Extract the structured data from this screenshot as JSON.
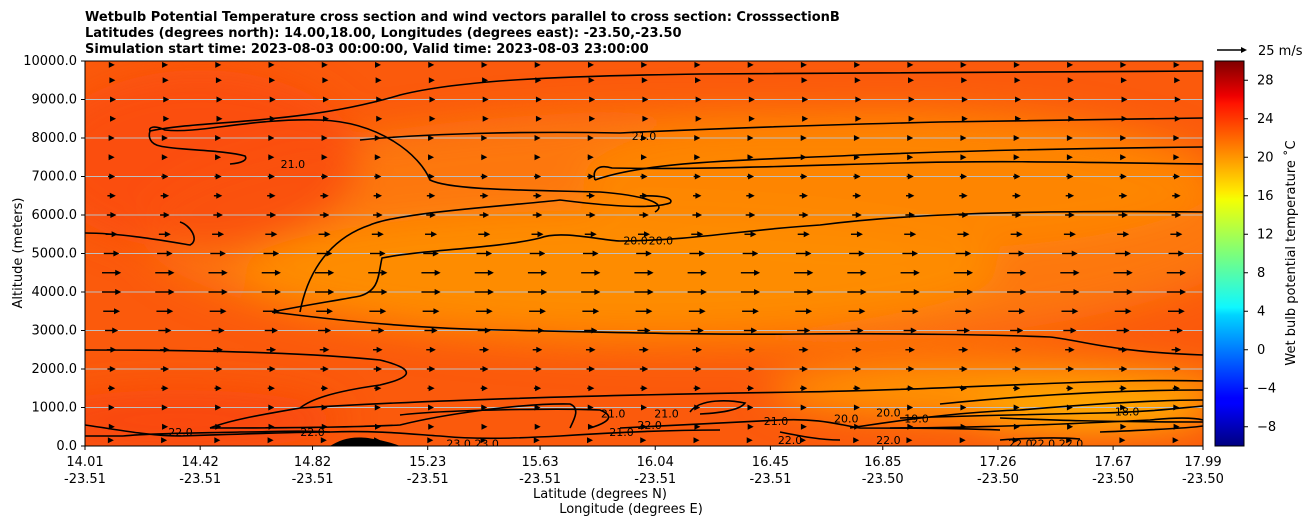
{
  "chart_data": {
    "type": "heatmap",
    "title_lines": [
      "Wetbulb Potential Temperature cross section and wind vectors parallel to cross section: CrosssectionB",
      "Latitudes (degrees north): 14.00,18.00, Longitudes (degrees east): -23.50,-23.50",
      "Simulation start time: 2023-08-03 00:00:00, Valid time: 2023-08-03 23:00:00"
    ],
    "ylabel": "Altitude (meters)",
    "xlabel_lat": "Latitude (degrees N)",
    "xlabel_lon": "Longitude (degrees E)",
    "ylim": [
      0,
      10000
    ],
    "yticks": [
      "0.0",
      "1000.0",
      "2000.0",
      "3000.0",
      "4000.0",
      "5000.0",
      "6000.0",
      "7000.0",
      "8000.0",
      "9000.0",
      "10000.0"
    ],
    "ytick_values": [
      0,
      1000,
      2000,
      3000,
      4000,
      5000,
      6000,
      7000,
      8000,
      9000,
      10000
    ],
    "xticks_lat": [
      "14.01",
      "14.42",
      "14.82",
      "15.23",
      "15.63",
      "16.04",
      "16.45",
      "16.85",
      "17.26",
      "17.67",
      "17.99"
    ],
    "xticks_lon": [
      "-23.51",
      "-23.51",
      "-23.51",
      "-23.51",
      "-23.51",
      "-23.51",
      "-23.51",
      "-23.50",
      "-23.50",
      "-23.50",
      "-23.50"
    ],
    "xtick_values": [
      14.01,
      14.42,
      14.82,
      15.23,
      15.63,
      16.04,
      16.45,
      16.85,
      17.26,
      17.67,
      17.99
    ],
    "xlim": [
      14.01,
      17.99
    ],
    "grid": "horizontal",
    "colorbar": {
      "label": "Wet bulb potential temperature ˚C",
      "range": [
        -10,
        30
      ],
      "ticks": [
        "−8",
        "−4",
        "0",
        "4",
        "8",
        "12",
        "16",
        "20",
        "24",
        "28"
      ],
      "tick_values": [
        -8,
        -4,
        0,
        4,
        8,
        12,
        16,
        20,
        24,
        28
      ],
      "colormap": "jet"
    },
    "quiver_key": {
      "label": "25 m/s",
      "speed": 25
    },
    "contour_labels": [
      {
        "text": "21.0",
        "lat": 16.0,
        "alt": 8050
      },
      {
        "text": "21.0",
        "lat": 14.75,
        "alt": 7330
      },
      {
        "text": "20.0",
        "lat": 15.97,
        "alt": 5340
      },
      {
        "text": "20.0",
        "lat": 16.06,
        "alt": 5340
      },
      {
        "text": "22.0",
        "lat": 14.35,
        "alt": 370
      },
      {
        "text": "22.0",
        "lat": 14.82,
        "alt": 370
      },
      {
        "text": "21.0",
        "lat": 15.89,
        "alt": 850
      },
      {
        "text": "21.0",
        "lat": 15.92,
        "alt": 370
      },
      {
        "text": "21.0",
        "lat": 16.08,
        "alt": 850
      },
      {
        "text": "22.0",
        "lat": 16.02,
        "alt": 550
      },
      {
        "text": "23.0",
        "lat": 15.34,
        "alt": 70
      },
      {
        "text": "23.0",
        "lat": 15.44,
        "alt": 70
      },
      {
        "text": "21.0",
        "lat": 16.47,
        "alt": 650
      },
      {
        "text": "22.0",
        "lat": 16.52,
        "alt": 150
      },
      {
        "text": "20.0",
        "lat": 16.72,
        "alt": 710
      },
      {
        "text": "20.0",
        "lat": 16.87,
        "alt": 870
      },
      {
        "text": "22.0",
        "lat": 16.87,
        "alt": 150
      },
      {
        "text": "19.0",
        "lat": 16.97,
        "alt": 720
      },
      {
        "text": "22.0",
        "lat": 17.34,
        "alt": 70
      },
      {
        "text": "22.0",
        "lat": 17.42,
        "alt": 70
      },
      {
        "text": "22.0",
        "lat": 17.52,
        "alt": 70
      },
      {
        "text": "18.0",
        "lat": 17.72,
        "alt": 900
      }
    ],
    "wind_profile": [
      {
        "alt": 150,
        "u": 0
      },
      {
        "alt": 500,
        "u": 2
      },
      {
        "alt": 1000,
        "u": 5
      },
      {
        "alt": 1500,
        "u": 6
      },
      {
        "alt": 2000,
        "u": 7
      },
      {
        "alt": 2500,
        "u": 8
      },
      {
        "alt": 3000,
        "u": 11
      },
      {
        "alt": 3500,
        "u": 14
      },
      {
        "alt": 4000,
        "u": 16
      },
      {
        "alt": 4500,
        "u": 16
      },
      {
        "alt": 5000,
        "u": 13
      },
      {
        "alt": 5500,
        "u": 10
      },
      {
        "alt": 6000,
        "u": 8
      },
      {
        "alt": 6500,
        "u": 7
      },
      {
        "alt": 7000,
        "u": 6
      },
      {
        "alt": 7500,
        "u": 5
      },
      {
        "alt": 8000,
        "u": 5
      },
      {
        "alt": 8500,
        "u": 4
      },
      {
        "alt": 9000,
        "u": 4
      },
      {
        "alt": 9500,
        "u": 3
      },
      {
        "alt": 9900,
        "u": 2
      }
    ],
    "temperature_field": [
      {
        "lat": 14.01,
        "alt": 0,
        "t": 25
      },
      {
        "lat": 14.5,
        "alt": 500,
        "t": 24.5
      },
      {
        "lat": 15.2,
        "alt": 3000,
        "t": 22.5
      },
      {
        "lat": 16.2,
        "alt": 4500,
        "t": 21
      },
      {
        "lat": 17.2,
        "alt": 1000,
        "t": 21
      },
      {
        "lat": 17.6,
        "alt": 800,
        "t": 19
      },
      {
        "lat": 14.2,
        "alt": 9000,
        "t": 24
      },
      {
        "lat": 17.9,
        "alt": 9500,
        "t": 23
      }
    ]
  }
}
